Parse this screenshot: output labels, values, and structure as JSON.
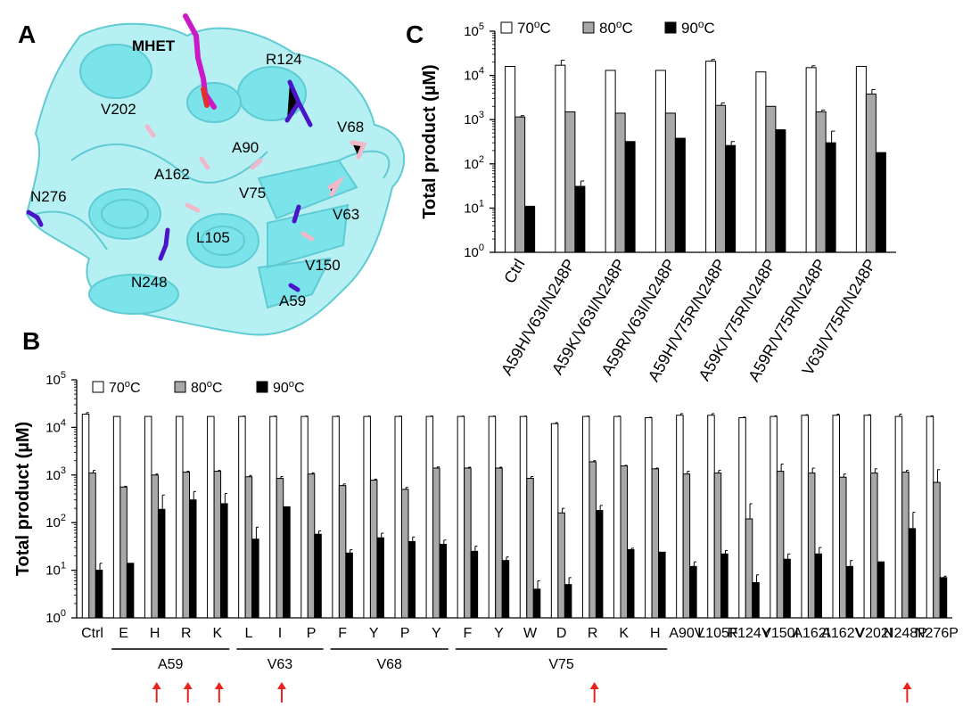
{
  "panel_a": {
    "letter": "A",
    "ligand_label": "MHET",
    "residue_labels": [
      "R124",
      "V202",
      "V68",
      "A90",
      "A162",
      "N276",
      "V75",
      "V63",
      "L105",
      "V150",
      "N248",
      "A59"
    ],
    "colors": {
      "protein": "#7be3ea",
      "ligand": "#cc19c8",
      "highlight": "#4a14c8",
      "sites": "#f0b8c8"
    }
  },
  "chart_data": [
    {
      "panel": "B",
      "type": "bar",
      "ylabel": "Total product (µM)",
      "yscale": "log",
      "ylim_exp": [
        0,
        5
      ],
      "ytick_exps": [
        0,
        1,
        2,
        3,
        4,
        5
      ],
      "legend": {
        "position": "top-left",
        "items": [
          "70°C",
          "80°C",
          "90°C"
        ]
      },
      "categories": [
        "Ctrl",
        "E",
        "H",
        "R",
        "K",
        "L",
        "I",
        "P",
        "F",
        "Y",
        "P",
        "Y",
        "F",
        "Y",
        "W",
        "D",
        "R",
        "K",
        "H",
        "A90V",
        "L105F",
        "R124Y",
        "V150I",
        "A162I",
        "A162V",
        "V202I",
        "N248P",
        "N276P"
      ],
      "groups": [
        {
          "label": "A59",
          "from": 1,
          "to": 4
        },
        {
          "label": "V63",
          "from": 5,
          "to": 7
        },
        {
          "label": "V68",
          "from": 8,
          "to": 11
        },
        {
          "label": "V75",
          "from": 12,
          "to": 18
        }
      ],
      "highlighted_indices": [
        2,
        3,
        4,
        6,
        16,
        26
      ],
      "series": [
        {
          "name": "70°C",
          "color": "#ffffff",
          "values": [
            19000,
            17000,
            17000,
            17000,
            17000,
            17000,
            17000,
            17000,
            17000,
            17000,
            17000,
            17000,
            17000,
            17000,
            17000,
            12000,
            17000,
            17000,
            16000,
            18000,
            18000,
            16000,
            17000,
            18000,
            18000,
            18000,
            17000,
            17000
          ],
          "errors": [
            1500,
            0,
            0,
            0,
            0,
            300,
            300,
            300,
            300,
            300,
            300,
            300,
            300,
            300,
            300,
            600,
            300,
            300,
            300,
            1500,
            1500,
            500,
            500,
            500,
            1000,
            500,
            2000,
            500
          ]
        },
        {
          "name": "80°C",
          "color": "#a8a8a8",
          "values": [
            1100,
            560,
            1000,
            1150,
            1200,
            920,
            850,
            1050,
            600,
            780,
            500,
            1400,
            1400,
            1400,
            850,
            160,
            1900,
            1550,
            1350,
            1050,
            1100,
            120,
            1200,
            1100,
            900,
            1100,
            1150,
            700
          ],
          "errors": [
            150,
            20,
            50,
            50,
            50,
            60,
            80,
            60,
            50,
            40,
            50,
            80,
            60,
            60,
            80,
            40,
            100,
            50,
            50,
            150,
            150,
            130,
            500,
            300,
            150,
            250,
            100,
            600
          ]
        },
        {
          "name": "90°C",
          "color": "#000000",
          "values": [
            10,
            14,
            190,
            300,
            250,
            45,
            215,
            57,
            23,
            48,
            40,
            35,
            25,
            16,
            4,
            5,
            180,
            27,
            24,
            12,
            22,
            5.5,
            17,
            22,
            12,
            15,
            75,
            7
          ],
          "errors": [
            4,
            0,
            190,
            150,
            160,
            35,
            0,
            10,
            4,
            12,
            10,
            8,
            7,
            3,
            2,
            2,
            50,
            2,
            0,
            3,
            4,
            2.5,
            5,
            8,
            4,
            0,
            90,
            0.5
          ]
        }
      ]
    },
    {
      "panel": "C",
      "type": "bar",
      "ylabel": "Total product (µM)",
      "yscale": "log",
      "ylim_exp": [
        0,
        5
      ],
      "ytick_exps": [
        0,
        1,
        2,
        3,
        4,
        5
      ],
      "legend": {
        "position": "top",
        "items": [
          "70°C",
          "80°C",
          "90°C"
        ]
      },
      "categories": [
        "Ctrl",
        "A59H/V63I/N248P",
        "A59K/V63I/N248P",
        "A59R/V63I/N248P",
        "A59H/V75R/N248P",
        "A59K/V75R/N248P",
        "A59R/V75R/N248P",
        "V63I/V75R/N248P"
      ],
      "series": [
        {
          "name": "70°C",
          "color": "#ffffff",
          "values": [
            16000,
            17000,
            13000,
            13000,
            21000,
            12000,
            15000,
            16000
          ],
          "errors": [
            0,
            5000,
            0,
            0,
            2000,
            0,
            1500,
            0
          ]
        },
        {
          "name": "80°C",
          "color": "#a8a8a8",
          "values": [
            1150,
            1500,
            1400,
            1400,
            2100,
            2000,
            1500,
            3800
          ],
          "errors": [
            80,
            0,
            0,
            0,
            300,
            0,
            150,
            1000
          ]
        },
        {
          "name": "90°C",
          "color": "#000000",
          "values": [
            11,
            31,
            320,
            380,
            260,
            590,
            300,
            180
          ],
          "errors": [
            0,
            10,
            0,
            0,
            60,
            0,
            250,
            0
          ]
        }
      ]
    }
  ],
  "colors": {
    "arrow": "#e8231d",
    "axis": "#000000"
  }
}
